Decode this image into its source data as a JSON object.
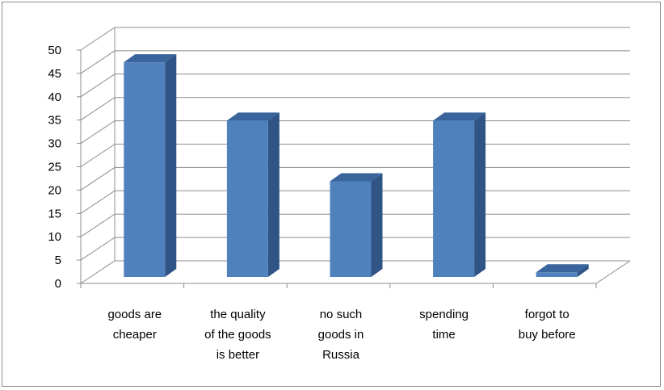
{
  "chart_data": {
    "type": "bar",
    "categories": [
      "goods are cheaper",
      "the quality of the goods is better",
      "no such goods in Russia",
      "spending time",
      "forgot to buy before"
    ],
    "category_lines": [
      [
        "goods are",
        "cheaper"
      ],
      [
        "the quality",
        "of the goods",
        "is better"
      ],
      [
        "no such",
        "goods in",
        "Russia"
      ],
      [
        "spending",
        "time"
      ],
      [
        "forgot to",
        "buy before"
      ]
    ],
    "values": [
      46,
      33.5,
      20.5,
      33.5,
      1
    ],
    "title": "",
    "xlabel": "",
    "ylabel": "",
    "ylim": [
      0,
      50
    ],
    "yticks": [
      "0",
      "5",
      "10",
      "15",
      "20",
      "25",
      "30",
      "35",
      "40",
      "45",
      "50"
    ],
    "grid": true,
    "legend": "none",
    "style": "3d-column",
    "colors": {
      "bar_front": "#4f81bd",
      "bar_side": "#2f5485",
      "bar_top": "#3a659c",
      "grid": "#8c8c8c"
    }
  }
}
